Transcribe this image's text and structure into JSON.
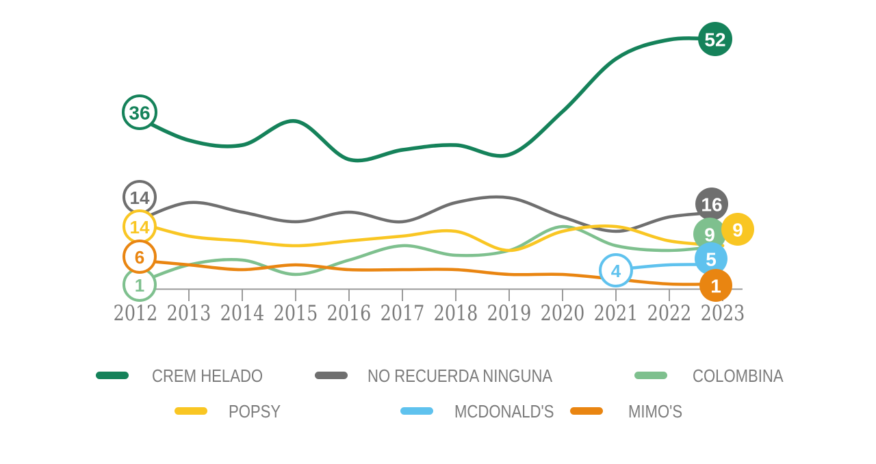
{
  "chart_data": {
    "type": "line",
    "title": "",
    "x": [
      "2012",
      "2013",
      "2014",
      "2015",
      "2016",
      "2017",
      "2018",
      "2019",
      "2020",
      "2021",
      "2022",
      "2023"
    ],
    "series": [
      {
        "name": "CREM HELADO",
        "color": "#15825A",
        "values": [
          36,
          31,
          30,
          35,
          27,
          29,
          30,
          28,
          37,
          48,
          52,
          52
        ],
        "first_label": "36",
        "last_label": "52"
      },
      {
        "name": "NO RECUERDA NINGUNA",
        "color": "#6F6F6F",
        "values": [
          14,
          18,
          16,
          14,
          16,
          14,
          18,
          19,
          15,
          12,
          15,
          16
        ],
        "first_label": "14",
        "last_label": "16"
      },
      {
        "name": "COLOMBINA",
        "color": "#7EC08E",
        "values": [
          1,
          5,
          6,
          3,
          6,
          9,
          7,
          8,
          13,
          9,
          8,
          9
        ],
        "first_label": "1",
        "last_label": "9"
      },
      {
        "name": "POPSY",
        "color": "#F9C623",
        "values": [
          14,
          11,
          10,
          9,
          10,
          11,
          12,
          8,
          12,
          13,
          10,
          9
        ],
        "first_label": "14",
        "last_label": "9"
      },
      {
        "name": "MCDONALD'S",
        "color": "#5FC2EE",
        "values": [
          null,
          null,
          null,
          null,
          null,
          null,
          null,
          null,
          null,
          4,
          5,
          5
        ],
        "first_label": "4",
        "last_label": "5"
      },
      {
        "name": "MIMO'S",
        "color": "#E98511",
        "values": [
          6,
          5,
          4,
          5,
          4,
          4,
          4,
          3,
          3,
          2,
          1,
          1
        ],
        "first_label": "6",
        "last_label": "1"
      }
    ],
    "ylim": [
      0,
      56
    ],
    "grid": false,
    "legend_position": "bottom",
    "axis_color": "#9B9B9B",
    "tick_label_color": "#7B7B7B",
    "legend_text_color": "#7B7B7B"
  }
}
